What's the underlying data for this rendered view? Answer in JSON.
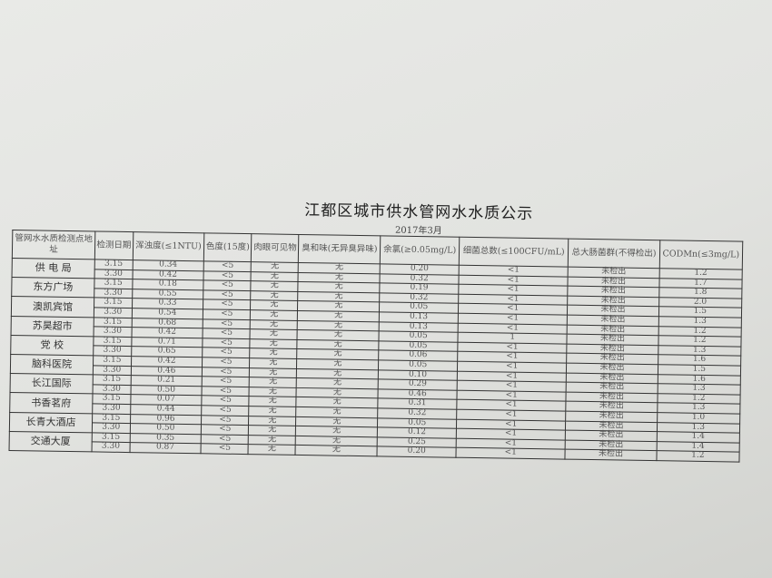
{
  "title": "江都区城市供水管网水水质公示",
  "subtitle": "2017年3月",
  "headers": [
    "管网水水质检测点地址",
    "检测日期",
    "浑浊度(≤1NTU)",
    "色度(15度)",
    "肉眼可见物",
    "臭和味(无异臭异味)",
    "余氯(≥0.05mg/L)",
    "细菌总数(≤100CFU/mL)",
    "总大肠菌群(不得检出)",
    "CODMn(≤3mg/L)"
  ],
  "sites": [
    "供 电 局",
    "东方广场",
    "澳凯宾馆",
    "苏昊超市",
    "党 校",
    "脑科医院",
    "长江国际",
    "书香茗府",
    "长青大酒店",
    "交通大厦"
  ],
  "dates": [
    "3.15",
    "3.30"
  ],
  "turbidity": [
    "0.34",
    "0.42",
    "0.18",
    "0.55",
    "0.33",
    "0.54",
    "0.68",
    "0.42",
    "0.71",
    "0.65",
    "0.42",
    "0.46",
    "0.21",
    "0.50",
    "0.07",
    "0.44",
    "0.96",
    "0.50",
    "0.35",
    "0.87"
  ],
  "color": "<5",
  "visible": "无",
  "odor": "无",
  "chlorine": [
    "0.20",
    "0.32",
    "0.19",
    "0.32",
    "0.05",
    "0.13",
    "0.13",
    "0.05",
    "0.05",
    "0.06",
    "0.05",
    "0.10",
    "0.29",
    "0.46",
    "0.31",
    "0.32",
    "0.05",
    "0.12",
    "0.25",
    "0.20"
  ],
  "bacteria": [
    "<1",
    "<1",
    "<1",
    "<1",
    "<1",
    "<1",
    "<1",
    "1",
    "<1",
    "<1",
    "<1",
    "<1",
    "<1",
    "<1",
    "<1",
    "<1",
    "<1",
    "<1",
    "<1",
    "<1"
  ],
  "coliform": "未检出",
  "codmn": [
    "1.2",
    "1.7",
    "1.8",
    "2.0",
    "1.5",
    "1.3",
    "1.2",
    "1.2",
    "1.3",
    "1.6",
    "1.5",
    "1.6",
    "1.3",
    "1.2",
    "1.3",
    "1.0",
    "1.3",
    "1.4",
    "1.4",
    "1.2"
  ]
}
